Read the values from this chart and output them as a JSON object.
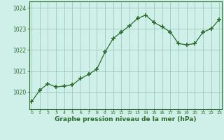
{
  "hours": [
    0,
    1,
    2,
    3,
    4,
    5,
    6,
    7,
    8,
    9,
    10,
    11,
    12,
    13,
    14,
    15,
    16,
    17,
    18,
    19,
    20,
    21,
    22,
    23
  ],
  "pressure": [
    1019.55,
    1020.1,
    1020.4,
    1020.25,
    1020.3,
    1020.35,
    1020.65,
    1020.85,
    1021.1,
    1021.9,
    1022.55,
    1022.85,
    1023.15,
    1023.5,
    1023.65,
    1023.3,
    1023.1,
    1022.85,
    1022.3,
    1022.25,
    1022.3,
    1022.85,
    1023.0,
    1023.45
  ],
  "line_color": "#2d6a2d",
  "marker": "+",
  "marker_size": 4,
  "marker_linewidth": 1.2,
  "bg_color": "#cef0e8",
  "grid_color": "#a0c8c0",
  "xlabel": "Graphe pression niveau de la mer (hPa)",
  "xlabel_color": "#2d6a2d",
  "tick_color": "#2d6a2d",
  "ylim": [
    1019.2,
    1024.3
  ],
  "yticks": [
    1020,
    1021,
    1022,
    1023,
    1024
  ],
  "xtick_labels": [
    "0",
    "1",
    "2",
    "3",
    "4",
    "5",
    "6",
    "7",
    "8",
    "9",
    "10",
    "11",
    "12",
    "13",
    "14",
    "15",
    "16",
    "17",
    "18",
    "19",
    "20",
    "21",
    "22",
    "23"
  ]
}
